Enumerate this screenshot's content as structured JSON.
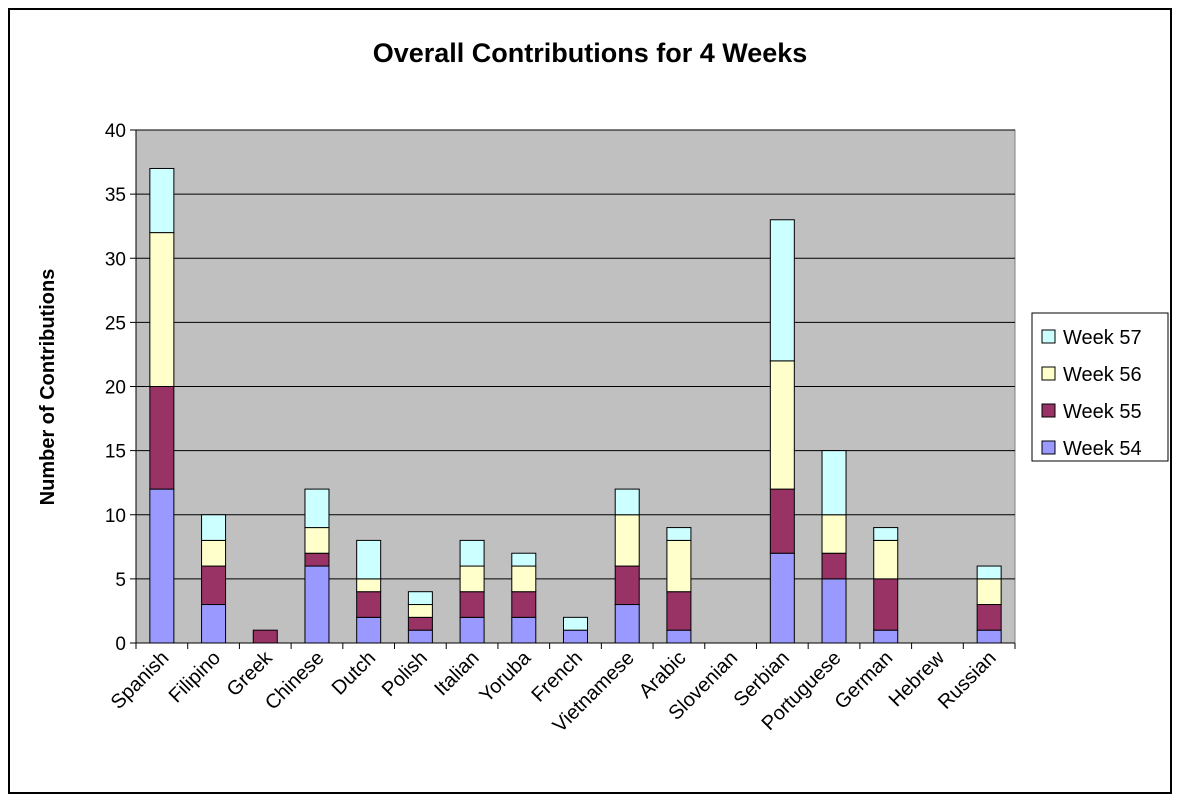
{
  "colors": {
    "plot_background": "#c0c0c0",
    "gridline": "#000000",
    "series": [
      "#9999ff",
      "#993366",
      "#ffffcc",
      "#ccffff"
    ]
  },
  "chart_data": {
    "type": "bar",
    "stacked": true,
    "title": "Overall Contributions for 4 Weeks",
    "xlabel": "",
    "ylabel": "Number of Contributions",
    "ylim": [
      0,
      40
    ],
    "yticks": [
      0,
      5,
      10,
      15,
      20,
      25,
      30,
      35,
      40
    ],
    "grid": true,
    "legend_position": "right",
    "categories": [
      "Spanish",
      "Filipino",
      "Greek",
      "Chinese",
      "Dutch",
      "Polish",
      "Italian",
      "Yoruba",
      "French",
      "Vietnamese",
      "Arabic",
      "Slovenian",
      "Serbian",
      "Portuguese",
      "German",
      "Hebrew",
      "Russian"
    ],
    "series": [
      {
        "name": "Week 54",
        "values": [
          12,
          3,
          0,
          6,
          2,
          1,
          2,
          2,
          1,
          3,
          1,
          0,
          7,
          5,
          1,
          0,
          1
        ]
      },
      {
        "name": "Week 55",
        "values": [
          8,
          3,
          1,
          1,
          2,
          1,
          2,
          2,
          0,
          3,
          3,
          0,
          5,
          2,
          4,
          0,
          2
        ]
      },
      {
        "name": "Week 56",
        "values": [
          12,
          2,
          0,
          2,
          1,
          1,
          2,
          2,
          0,
          4,
          4,
          0,
          10,
          3,
          3,
          0,
          2
        ]
      },
      {
        "name": "Week 57",
        "values": [
          5,
          2,
          0,
          3,
          3,
          1,
          2,
          1,
          1,
          2,
          1,
          0,
          11,
          5,
          1,
          0,
          1
        ]
      }
    ]
  }
}
